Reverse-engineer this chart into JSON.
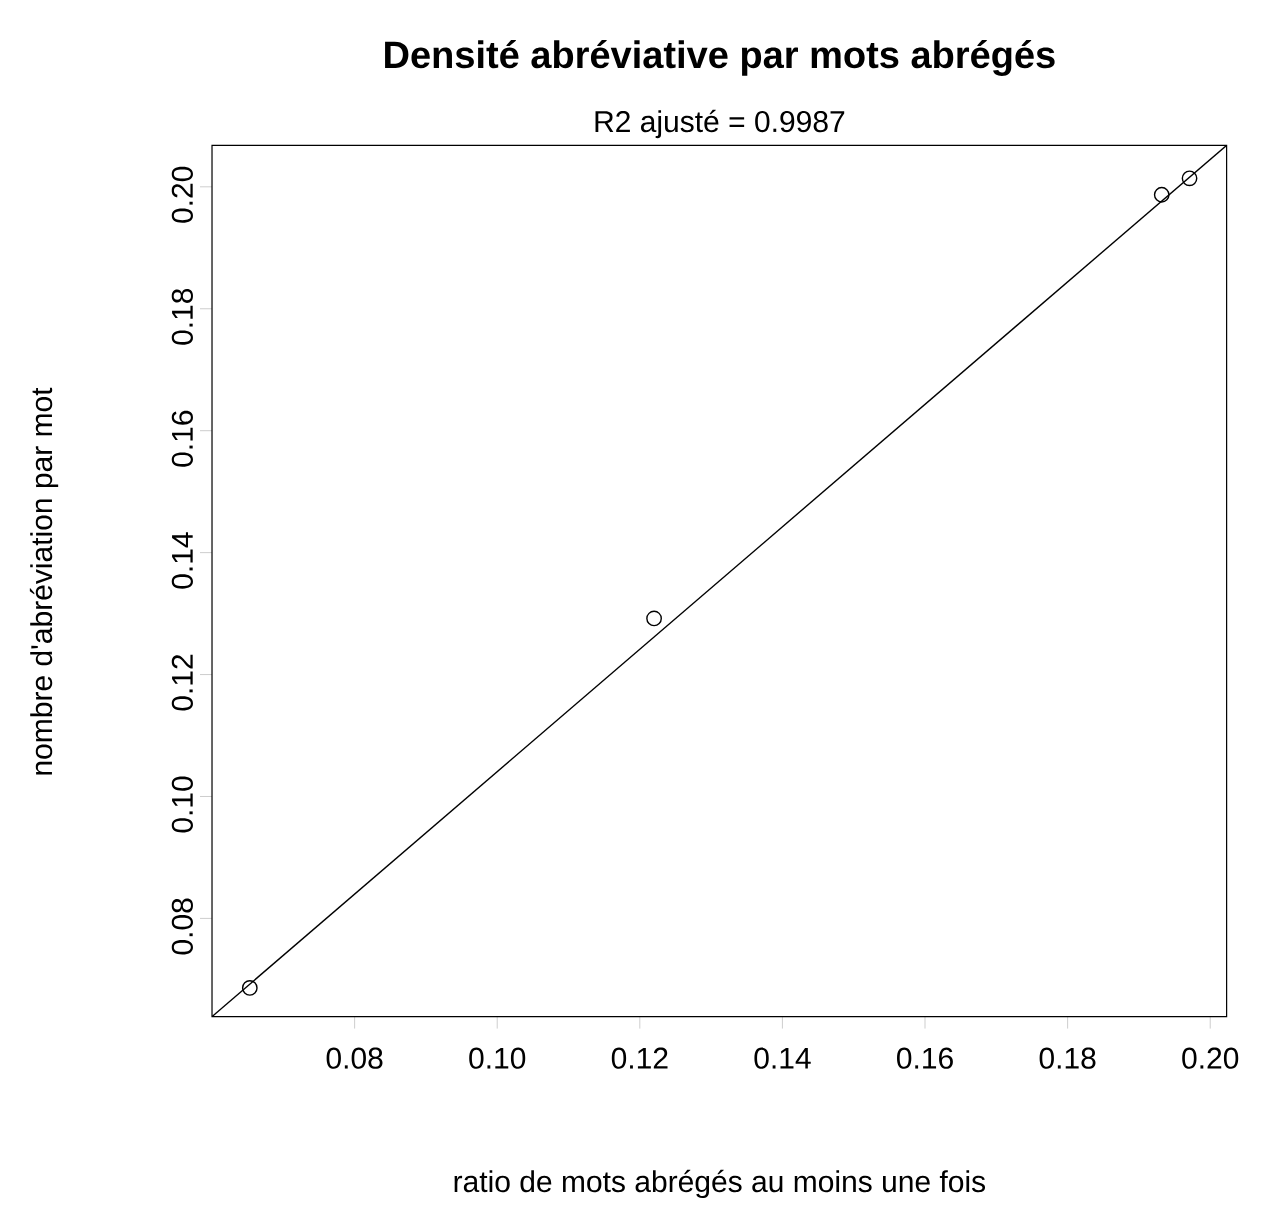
{
  "chart_data": {
    "type": "scatter",
    "title": "Densité abréviative par mots abrégés",
    "subtitle": "R2 ajusté =  0.9987",
    "xlabel": "ratio de mots abrégés au moins une fois",
    "ylabel": "nombre d'abréviation par mot",
    "marker": "circle",
    "grid": false,
    "xlim": [
      0.06,
      0.2023
    ],
    "ylim": [
      0.0639,
      0.2068
    ],
    "xticks": [
      {
        "value": 0.08,
        "label": "0.08"
      },
      {
        "value": 0.1,
        "label": "0.10"
      },
      {
        "value": 0.12,
        "label": "0.12"
      },
      {
        "value": 0.14,
        "label": "0.14"
      },
      {
        "value": 0.16,
        "label": "0.16"
      },
      {
        "value": 0.18,
        "label": "0.18"
      },
      {
        "value": 0.2,
        "label": "0.20"
      }
    ],
    "yticks": [
      {
        "value": 0.08,
        "label": "0.08"
      },
      {
        "value": 0.1,
        "label": "0.10"
      },
      {
        "value": 0.12,
        "label": "0.12"
      },
      {
        "value": 0.14,
        "label": "0.14"
      },
      {
        "value": 0.16,
        "label": "0.16"
      },
      {
        "value": 0.18,
        "label": "0.18"
      },
      {
        "value": 0.2,
        "label": "0.20"
      }
    ],
    "series": [
      {
        "color": "#000000",
        "x": [
          0.0653,
          0.122,
          0.1932,
          0.1971
        ],
        "values": [
          0.0686,
          0.1292,
          0.1987,
          0.2014
        ]
      },
      {
        "type": "line",
        "color": "#000000",
        "marker": "none",
        "line_style": "solid",
        "x": [
          0.06,
          0.2023
        ],
        "values": [
          0.0639,
          0.2068
        ]
      }
    ]
  }
}
